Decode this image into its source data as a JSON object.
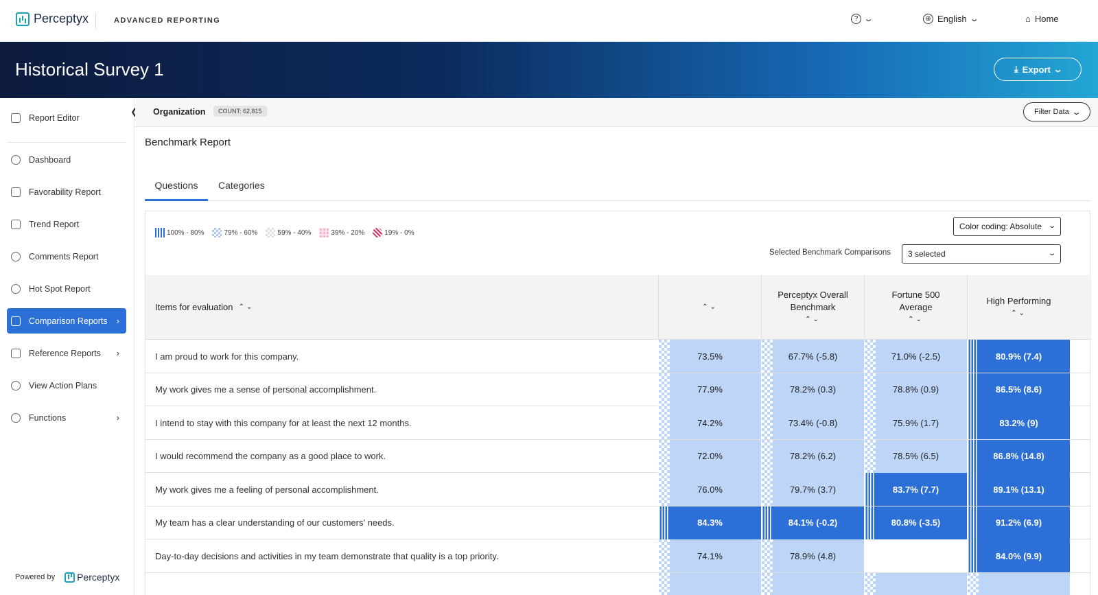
{
  "header": {
    "brand": "Perceptyx",
    "product": "ADVANCED REPORTING",
    "help_icon": "question-circle-icon",
    "language": "English",
    "home": "Home"
  },
  "banner": {
    "title": "Historical Survey 1",
    "export_label": "Export"
  },
  "sidebar": {
    "items": [
      {
        "label": "Report Editor",
        "icon": "edit-icon"
      },
      {
        "label": "Dashboard",
        "icon": "gauge-icon"
      },
      {
        "label": "Favorability Report",
        "icon": "thumbs-up-icon"
      },
      {
        "label": "Trend Report",
        "icon": "trend-icon"
      },
      {
        "label": "Comments Report",
        "icon": "comments-icon"
      },
      {
        "label": "Hot Spot Report",
        "icon": "target-icon"
      },
      {
        "label": "Comparison Reports",
        "icon": "scale-icon"
      },
      {
        "label": "Reference Reports",
        "icon": "list-icon"
      },
      {
        "label": "View Action Plans",
        "icon": "check-circle-icon"
      },
      {
        "label": "Functions",
        "icon": "gear-icon"
      }
    ],
    "powered_by": "Powered by",
    "powered_brand": "Perceptyx"
  },
  "filterbar": {
    "org_label": "Organization",
    "count": "COUNT: 62,815",
    "filter_label": "Filter Data"
  },
  "report": {
    "title": "Benchmark Report",
    "tabs": [
      "Questions",
      "Categories"
    ],
    "legend": [
      "100% - 80%",
      "79% - 60%",
      "59% - 40%",
      "39% - 20%",
      "19% - 0%"
    ],
    "color_coding": "Color coding: Absolute",
    "bench_label": "Selected Benchmark Comparisons",
    "bench_value": "3 selected"
  },
  "table": {
    "col_items": "Items for evaluation",
    "col2_line1": "Perceptyx Overall",
    "col2_line2": "Benchmark",
    "col3_line1": "Fortune 500",
    "col3_line2": "Average",
    "col4": "High Performing",
    "rows": [
      {
        "q": "I am proud to work for this company.",
        "c": [
          "73.5%",
          "67.7% (-5.8)",
          "71.0% (-2.5)",
          "80.9% (7.4)"
        ],
        "t": [
          "light",
          "light",
          "light",
          "dark"
        ]
      },
      {
        "q": "My work gives me a sense of personal accomplishment.",
        "c": [
          "77.9%",
          "78.2% (0.3)",
          "78.8% (0.9)",
          "86.5% (8.6)"
        ],
        "t": [
          "light",
          "light",
          "light",
          "dark"
        ]
      },
      {
        "q": "I intend to stay with this company for at least the next 12 months.",
        "c": [
          "74.2%",
          "73.4% (-0.8)",
          "75.9% (1.7)",
          "83.2% (9)"
        ],
        "t": [
          "light",
          "light",
          "light",
          "dark"
        ]
      },
      {
        "q": "I would recommend the company as a good place to work.",
        "c": [
          "72.0%",
          "78.2% (6.2)",
          "78.5% (6.5)",
          "86.8% (14.8)"
        ],
        "t": [
          "light",
          "light",
          "light",
          "dark"
        ]
      },
      {
        "q": "My work gives me a feeling of personal accomplishment.",
        "c": [
          "76.0%",
          "79.7% (3.7)",
          "83.7% (7.7)",
          "89.1% (13.1)"
        ],
        "t": [
          "light",
          "light",
          "dark",
          "dark"
        ]
      },
      {
        "q": "My team has a clear understanding of our customers' needs.",
        "c": [
          "84.3%",
          "84.1% (-0.2)",
          "80.8% (-3.5)",
          "91.2% (6.9)"
        ],
        "t": [
          "dark",
          "dark",
          "dark",
          "dark"
        ]
      },
      {
        "q": "Day-to-day decisions and activities in my team demonstrate that quality is a top priority.",
        "c": [
          "74.1%",
          "78.9% (4.8)",
          "",
          "84.0% (9.9)"
        ],
        "t": [
          "light",
          "light",
          "none",
          "dark"
        ]
      },
      {
        "q": "",
        "c": [
          "",
          "",
          "",
          ""
        ],
        "t": [
          "light",
          "light",
          "light",
          "light"
        ]
      }
    ]
  }
}
